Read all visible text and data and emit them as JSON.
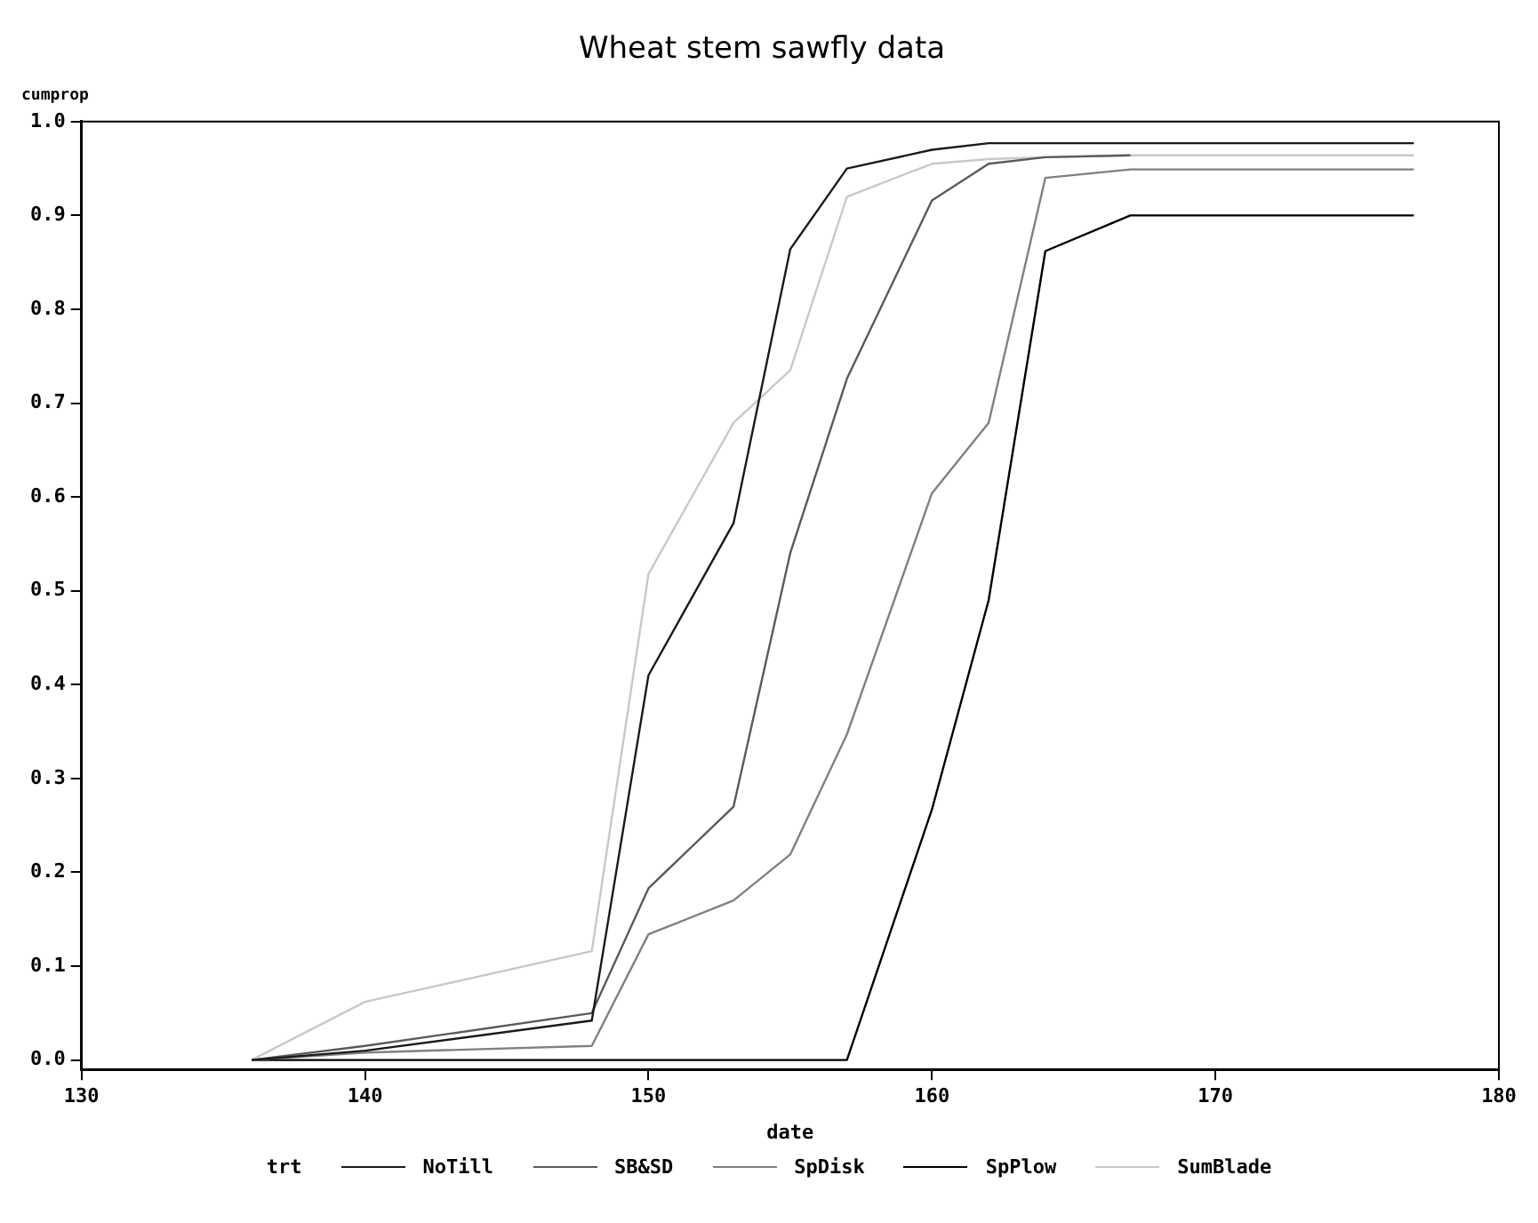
{
  "chart_data": {
    "type": "line",
    "title": "Wheat stem sawfly data",
    "xlabel": "date",
    "ylabel": "cumprop",
    "legend_title": "trt",
    "legend": "bottom",
    "grid": false,
    "marker": "none",
    "line_style": "solid",
    "x": [
      136,
      140,
      148,
      150,
      153,
      155,
      157,
      160,
      162,
      164,
      167,
      177
    ],
    "xlim": [
      130,
      180
    ],
    "xticks": [
      130,
      140,
      150,
      160,
      170,
      180
    ],
    "ylim": [
      -0.01,
      1.0
    ],
    "yticks": [
      {
        "value": 0,
        "label": "0.0"
      },
      {
        "value": 0.1,
        "label": "0.1"
      },
      {
        "value": 0.2,
        "label": "0.2"
      },
      {
        "value": 0.3,
        "label": "0.3"
      },
      {
        "value": 0.4,
        "label": "0.4"
      },
      {
        "value": 0.5,
        "label": "0.5"
      },
      {
        "value": 0.6,
        "label": "0.6"
      },
      {
        "value": 0.7,
        "label": "0.7"
      },
      {
        "value": 0.8,
        "label": "0.8"
      },
      {
        "value": 0.9,
        "label": "0.9"
      },
      {
        "value": 1.0,
        "label": "1.0"
      }
    ],
    "series": [
      {
        "name": "NoTill",
        "color": "#1a1a1a",
        "values": [
          0,
          0.01,
          0.042,
          0.41,
          0.572,
          0.864,
          0.95,
          0.97,
          0.977,
          0.977,
          0.977,
          0.977
        ]
      },
      {
        "name": "SB&SD",
        "color": "#5a5a5a",
        "values": [
          0,
          0.015,
          0.05,
          0.183,
          0.27,
          0.54,
          0.726,
          0.916,
          0.955,
          0.962,
          0.964,
          null
        ]
      },
      {
        "name": "SpDisk",
        "color": "#808080",
        "values": [
          0,
          0.008,
          0.015,
          0.134,
          0.17,
          0.219,
          0.347,
          0.604,
          0.679,
          0.94,
          0.949,
          0.949
        ]
      },
      {
        "name": "SpPlow",
        "color": "#000000",
        "values": [
          0,
          0,
          0,
          0,
          0,
          0,
          0,
          0.267,
          0.49,
          0.862,
          0.9,
          0.9
        ]
      },
      {
        "name": "SumBlade",
        "color": "#c8c8c8",
        "values": [
          0,
          0.062,
          0.116,
          0.518,
          0.679,
          0.735,
          0.92,
          0.955,
          0.96,
          0.962,
          0.964,
          0.964
        ]
      }
    ]
  }
}
